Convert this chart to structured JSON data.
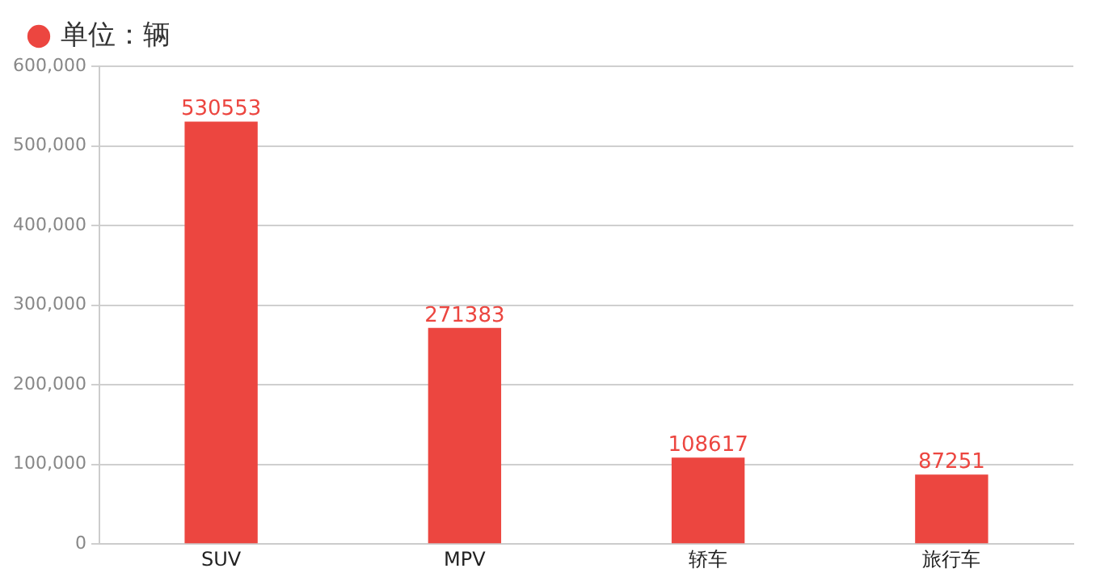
{
  "chart_data": {
    "type": "bar",
    "categories": [
      "SUV",
      "MPV",
      "轿车",
      "旅行车"
    ],
    "series": [
      {
        "name": "单位：辆",
        "color": "#ec4640",
        "values": [
          530553,
          271383,
          108617,
          87251
        ]
      }
    ],
    "ylim": [
      0,
      600000
    ],
    "yticks": [
      0,
      {
        "value": 100000,
        "label": "100,000"
      },
      {
        "value": 200000,
        "label": "200,000"
      },
      {
        "value": 300000,
        "label": "300,000"
      },
      {
        "value": 400000,
        "label": "400,000"
      },
      {
        "value": 500000,
        "label": "500,000"
      },
      {
        "value": 600000,
        "label": "600,000"
      }
    ],
    "grid": "y",
    "legend": "top left",
    "data_labels": true
  }
}
